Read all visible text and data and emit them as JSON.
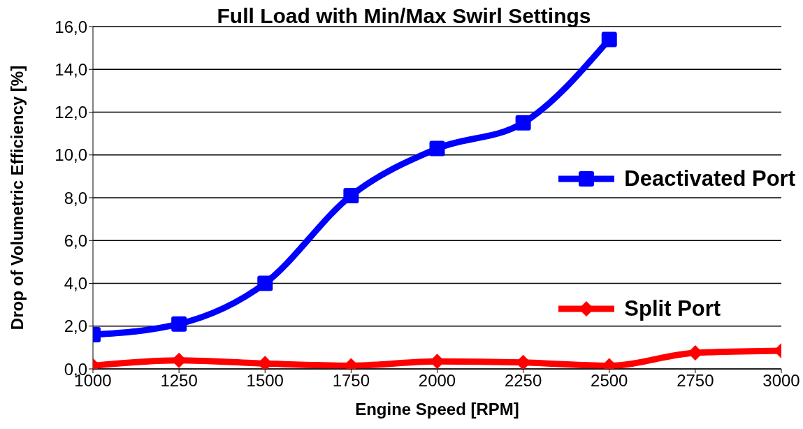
{
  "chart_data": {
    "type": "line",
    "title": "Full Load with Min/Max Swirl Settings",
    "xlabel": "Engine Speed [RPM]",
    "ylabel": "Drop of Volumetric Efficiency [%]",
    "x": [
      1000,
      1250,
      1500,
      1750,
      2000,
      2250,
      2500,
      2750,
      3000
    ],
    "xlim": [
      1000,
      3000
    ],
    "xticks": [
      1000,
      1250,
      1500,
      1750,
      2000,
      2250,
      2500,
      2750,
      3000
    ],
    "ylim": [
      0,
      16
    ],
    "yticks": [
      {
        "value": 0,
        "label": "0,0"
      },
      {
        "value": 2,
        "label": "2,0"
      },
      {
        "value": 4,
        "label": "4,0"
      },
      {
        "value": 6,
        "label": "6,0"
      },
      {
        "value": 8,
        "label": "8,0"
      },
      {
        "value": 10,
        "label": "10,0"
      },
      {
        "value": 12,
        "label": "12,0"
      },
      {
        "value": 14,
        "label": "14,0"
      },
      {
        "value": 16,
        "label": "16,0"
      }
    ],
    "grid": "y",
    "legend": "right",
    "line_style": "solid",
    "series": [
      {
        "name": "Deactivated Port",
        "color": "#0000ff",
        "marker": "square",
        "values": [
          1.6,
          2.1,
          4.0,
          8.1,
          10.3,
          11.5,
          15.4,
          null,
          null
        ]
      },
      {
        "name": "Split Port",
        "color": "#ff0000",
        "marker": "diamond",
        "values": [
          0.15,
          0.4,
          0.25,
          0.15,
          0.35,
          0.3,
          0.15,
          0.75,
          0.85
        ]
      }
    ]
  }
}
